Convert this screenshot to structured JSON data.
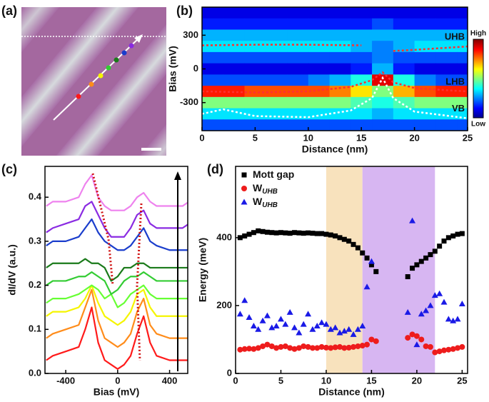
{
  "panel_a": {
    "label": "(a)"
  },
  "chart_data": [
    {
      "type": "heatmap",
      "label": "(b)",
      "xlabel": "Distance (nm)",
      "ylabel": "Bias (mV)",
      "xlim": [
        0,
        25
      ],
      "xticks": [
        0,
        5,
        10,
        15,
        20,
        25
      ],
      "ylim": [
        -550,
        550
      ],
      "yticks": [
        300,
        0,
        -300
      ],
      "colorbar": {
        "high": "High",
        "low": "Low"
      },
      "x": [
        1,
        3,
        5,
        7,
        9,
        11,
        13,
        15,
        17,
        19,
        21,
        23,
        25
      ],
      "y": [
        500,
        400,
        300,
        200,
        100,
        0,
        -100,
        -200,
        -300,
        -400,
        -500
      ],
      "values": [
        [
          0.1,
          0.1,
          0.1,
          0.1,
          0.1,
          0.1,
          0.1,
          0.1,
          0.1,
          0.1,
          0.1,
          0.1,
          0.1
        ],
        [
          0.15,
          0.15,
          0.15,
          0.15,
          0.15,
          0.15,
          0.15,
          0.15,
          0.2,
          0.15,
          0.15,
          0.15,
          0.15
        ],
        [
          0.3,
          0.3,
          0.3,
          0.3,
          0.3,
          0.3,
          0.3,
          0.3,
          0.3,
          0.3,
          0.3,
          0.3,
          0.3
        ],
        [
          0.35,
          0.35,
          0.35,
          0.35,
          0.35,
          0.35,
          0.35,
          0.3,
          0.25,
          0.3,
          0.35,
          0.35,
          0.35
        ],
        [
          0.2,
          0.2,
          0.2,
          0.2,
          0.2,
          0.2,
          0.2,
          0.2,
          0.25,
          0.2,
          0.2,
          0.2,
          0.2
        ],
        [
          0.1,
          0.1,
          0.1,
          0.1,
          0.1,
          0.1,
          0.1,
          0.15,
          0.3,
          0.15,
          0.1,
          0.1,
          0.1
        ],
        [
          0.2,
          0.2,
          0.2,
          0.2,
          0.2,
          0.25,
          0.3,
          0.4,
          0.9,
          0.4,
          0.25,
          0.2,
          0.2
        ],
        [
          0.85,
          0.85,
          0.8,
          0.8,
          0.8,
          0.8,
          0.75,
          0.65,
          0.5,
          0.7,
          0.8,
          0.85,
          0.85
        ],
        [
          0.5,
          0.5,
          0.5,
          0.5,
          0.5,
          0.5,
          0.5,
          0.45,
          0.4,
          0.45,
          0.5,
          0.5,
          0.5
        ],
        [
          0.35,
          0.35,
          0.35,
          0.35,
          0.35,
          0.35,
          0.35,
          0.35,
          0.3,
          0.35,
          0.35,
          0.35,
          0.35
        ],
        [
          0.2,
          0.2,
          0.2,
          0.2,
          0.2,
          0.2,
          0.2,
          0.2,
          0.2,
          0.2,
          0.2,
          0.2,
          0.2
        ]
      ],
      "series": [
        {
          "name": "UHB",
          "color": "#ff3030",
          "label_color": "#ff2020",
          "x": [
            0,
            5,
            10,
            15,
            16.5,
            18,
            20,
            25
          ],
          "values": [
            210,
            215,
            215,
            210,
            null,
            160,
            170,
            200
          ]
        },
        {
          "name": "LHB",
          "color": "#ff3030",
          "label_color": "#ff2020",
          "x": [
            0,
            5,
            10,
            14,
            16,
            17,
            18,
            20,
            23,
            25
          ],
          "values": [
            -200,
            -210,
            -200,
            -160,
            -100,
            -30,
            -120,
            -170,
            -190,
            -200
          ]
        },
        {
          "name": "VB",
          "color": "#ffffff",
          "label_color": "#ffffff",
          "x": [
            0,
            2,
            5,
            10,
            14,
            16,
            17,
            18,
            20,
            25
          ],
          "values": [
            -400,
            -360,
            -420,
            -430,
            -370,
            -260,
            -80,
            -260,
            -380,
            -440
          ]
        }
      ]
    },
    {
      "type": "line",
      "label": "(c)",
      "xlabel": "Bias (mV)",
      "ylabel": "dI/dV (a.u.)",
      "xlim": [
        -560,
        540
      ],
      "xticks": [
        -400,
        0,
        400
      ],
      "ylim": [
        0,
        0.47
      ],
      "yticks": [
        {
          "value": 0,
          "label": "0.0"
        },
        0.1,
        0.2,
        0.3,
        0.4
      ],
      "x": [
        -550,
        -500,
        -400,
        -300,
        -250,
        -200,
        -150,
        -100,
        -50,
        0,
        50,
        100,
        150,
        200,
        250,
        300,
        400,
        500,
        550
      ],
      "series": [
        {
          "color": "#ff1a1a",
          "values": [
            0.03,
            0.04,
            0.05,
            0.06,
            0.1,
            0.15,
            0.07,
            0.03,
            0.02,
            0.01,
            0.02,
            0.04,
            0.09,
            0.13,
            0.07,
            0.04,
            0.03,
            0.03,
            0.03
          ]
        },
        {
          "color": "#ff8c1a",
          "values": [
            0.08,
            0.09,
            0.1,
            0.11,
            0.15,
            0.19,
            0.12,
            0.08,
            0.07,
            0.06,
            0.07,
            0.09,
            0.14,
            0.17,
            0.11,
            0.09,
            0.08,
            0.08,
            0.08
          ]
        },
        {
          "color": "#f5f500",
          "values": [
            0.13,
            0.14,
            0.14,
            0.15,
            0.17,
            0.2,
            0.16,
            0.13,
            0.12,
            0.11,
            0.12,
            0.14,
            0.18,
            0.19,
            0.15,
            0.13,
            0.13,
            0.13,
            0.13
          ]
        },
        {
          "color": "#66ff33",
          "values": [
            0.16,
            0.17,
            0.17,
            0.18,
            0.19,
            0.2,
            0.19,
            0.17,
            0.18,
            0.15,
            0.16,
            0.18,
            0.19,
            0.2,
            0.18,
            0.17,
            0.17,
            0.17,
            0.17
          ]
        },
        {
          "color": "#33cc33",
          "values": [
            0.2,
            0.21,
            0.21,
            0.22,
            0.22,
            0.23,
            0.22,
            0.21,
            0.18,
            0.19,
            0.21,
            0.22,
            0.22,
            0.23,
            0.22,
            0.21,
            0.21,
            0.21,
            0.21
          ]
        },
        {
          "color": "#1a7a1a",
          "values": [
            0.24,
            0.25,
            0.25,
            0.25,
            0.26,
            0.25,
            0.25,
            0.24,
            0.21,
            0.22,
            0.24,
            0.24,
            0.25,
            0.25,
            0.24,
            0.24,
            0.24,
            0.24,
            0.24
          ]
        },
        {
          "color": "#1a3dcc",
          "values": [
            0.29,
            0.3,
            0.3,
            0.31,
            0.33,
            0.35,
            0.32,
            0.3,
            0.29,
            0.28,
            0.28,
            0.29,
            0.31,
            0.33,
            0.3,
            0.29,
            0.28,
            0.28,
            0.28
          ]
        },
        {
          "color": "#8a2be2",
          "values": [
            0.32,
            0.33,
            0.34,
            0.35,
            0.38,
            0.39,
            0.36,
            0.33,
            0.31,
            0.31,
            0.31,
            0.33,
            0.36,
            0.37,
            0.34,
            0.33,
            0.33,
            0.33,
            0.34
          ]
        },
        {
          "color": "#ee82ee",
          "values": [
            0.38,
            0.39,
            0.39,
            0.4,
            0.43,
            0.45,
            0.4,
            0.38,
            0.37,
            0.37,
            0.37,
            0.38,
            0.4,
            0.41,
            0.39,
            0.38,
            0.38,
            0.38,
            0.39
          ]
        }
      ]
    },
    {
      "type": "scatter",
      "label": "(d)",
      "xlabel": "Distance (nm)",
      "ylabel": "Energy (meV)",
      "xlim": [
        0,
        25.6
      ],
      "xticks": [
        0,
        5,
        10,
        15,
        20,
        25
      ],
      "ylim": [
        0,
        610
      ],
      "yticks": [
        0,
        200,
        400
      ],
      "legend": "upper left",
      "bands": [
        {
          "from": 10,
          "to": 14,
          "color": "#f8e2bd"
        },
        {
          "from": 14,
          "to": 22,
          "color": "#d7b6f2"
        }
      ],
      "series": [
        {
          "name": "Mott gap",
          "marker": "square",
          "color": "#000000",
          "x": [
            0.5,
            1,
            1.5,
            2,
            2.5,
            3,
            3.5,
            4,
            4.5,
            5,
            5.5,
            6,
            6.5,
            7,
            7.5,
            8,
            8.5,
            9,
            9.5,
            10,
            10.5,
            11,
            11.5,
            12,
            12.5,
            13,
            13.5,
            14,
            14.5,
            15,
            15.5,
            19,
            19.5,
            20,
            20.5,
            21,
            21.5,
            22,
            22.5,
            23,
            23.5,
            24,
            24.5,
            25
          ],
          "values": [
            400,
            405,
            410,
            415,
            420,
            418,
            416,
            415,
            414,
            415,
            414,
            413,
            415,
            414,
            413,
            414,
            413,
            412,
            412,
            410,
            408,
            405,
            400,
            395,
            390,
            380,
            370,
            355,
            340,
            320,
            300,
            285,
            310,
            320,
            330,
            340,
            350,
            360,
            375,
            390,
            400,
            405,
            410,
            412
          ]
        },
        {
          "name": "W",
          "subscript": "UHB",
          "marker": "circle",
          "color": "#ee1c1c",
          "x": [
            0.5,
            1,
            1.5,
            2,
            2.5,
            3,
            3.5,
            4,
            4.5,
            5,
            5.5,
            6,
            6.5,
            7,
            7.5,
            8,
            8.5,
            9,
            9.5,
            10,
            10.5,
            11,
            11.5,
            12,
            12.5,
            13,
            13.5,
            14,
            14.5,
            15,
            15.5,
            19,
            19.5,
            20,
            20.5,
            21,
            21.5,
            22,
            22.5,
            23,
            23.5,
            24,
            24.5,
            25
          ],
          "values": [
            70,
            72,
            73,
            72,
            75,
            80,
            85,
            80,
            75,
            78,
            80,
            75,
            72,
            75,
            80,
            78,
            75,
            75,
            78,
            76,
            75,
            77,
            78,
            75,
            76,
            78,
            80,
            82,
            85,
            100,
            95,
            105,
            115,
            110,
            100,
            80,
            78,
            62,
            65,
            68,
            70,
            72,
            75,
            78
          ]
        },
        {
          "name": "W",
          "subscript": "UHB",
          "marker": "triangle",
          "color": "#1a1ae6",
          "x": [
            0.5,
            1,
            1.5,
            2,
            2.5,
            3,
            3.5,
            4,
            4.5,
            5,
            5.5,
            6,
            6.5,
            7,
            7.5,
            8,
            8.5,
            9,
            9.5,
            10,
            10.5,
            11,
            11.5,
            12,
            12.5,
            13,
            13.5,
            14,
            14.5,
            15,
            19,
            19.5,
            20,
            20.5,
            21,
            21.5,
            22,
            22.5,
            23,
            23.5,
            24,
            24.5,
            25
          ],
          "values": [
            175,
            215,
            165,
            140,
            130,
            155,
            170,
            135,
            140,
            160,
            145,
            180,
            135,
            120,
            145,
            175,
            130,
            140,
            150,
            145,
            130,
            135,
            120,
            125,
            130,
            115,
            130,
            140,
            255,
            330,
            180,
            450,
            85,
            175,
            185,
            200,
            230,
            235,
            210,
            160,
            155,
            160,
            205
          ]
        }
      ]
    }
  ]
}
